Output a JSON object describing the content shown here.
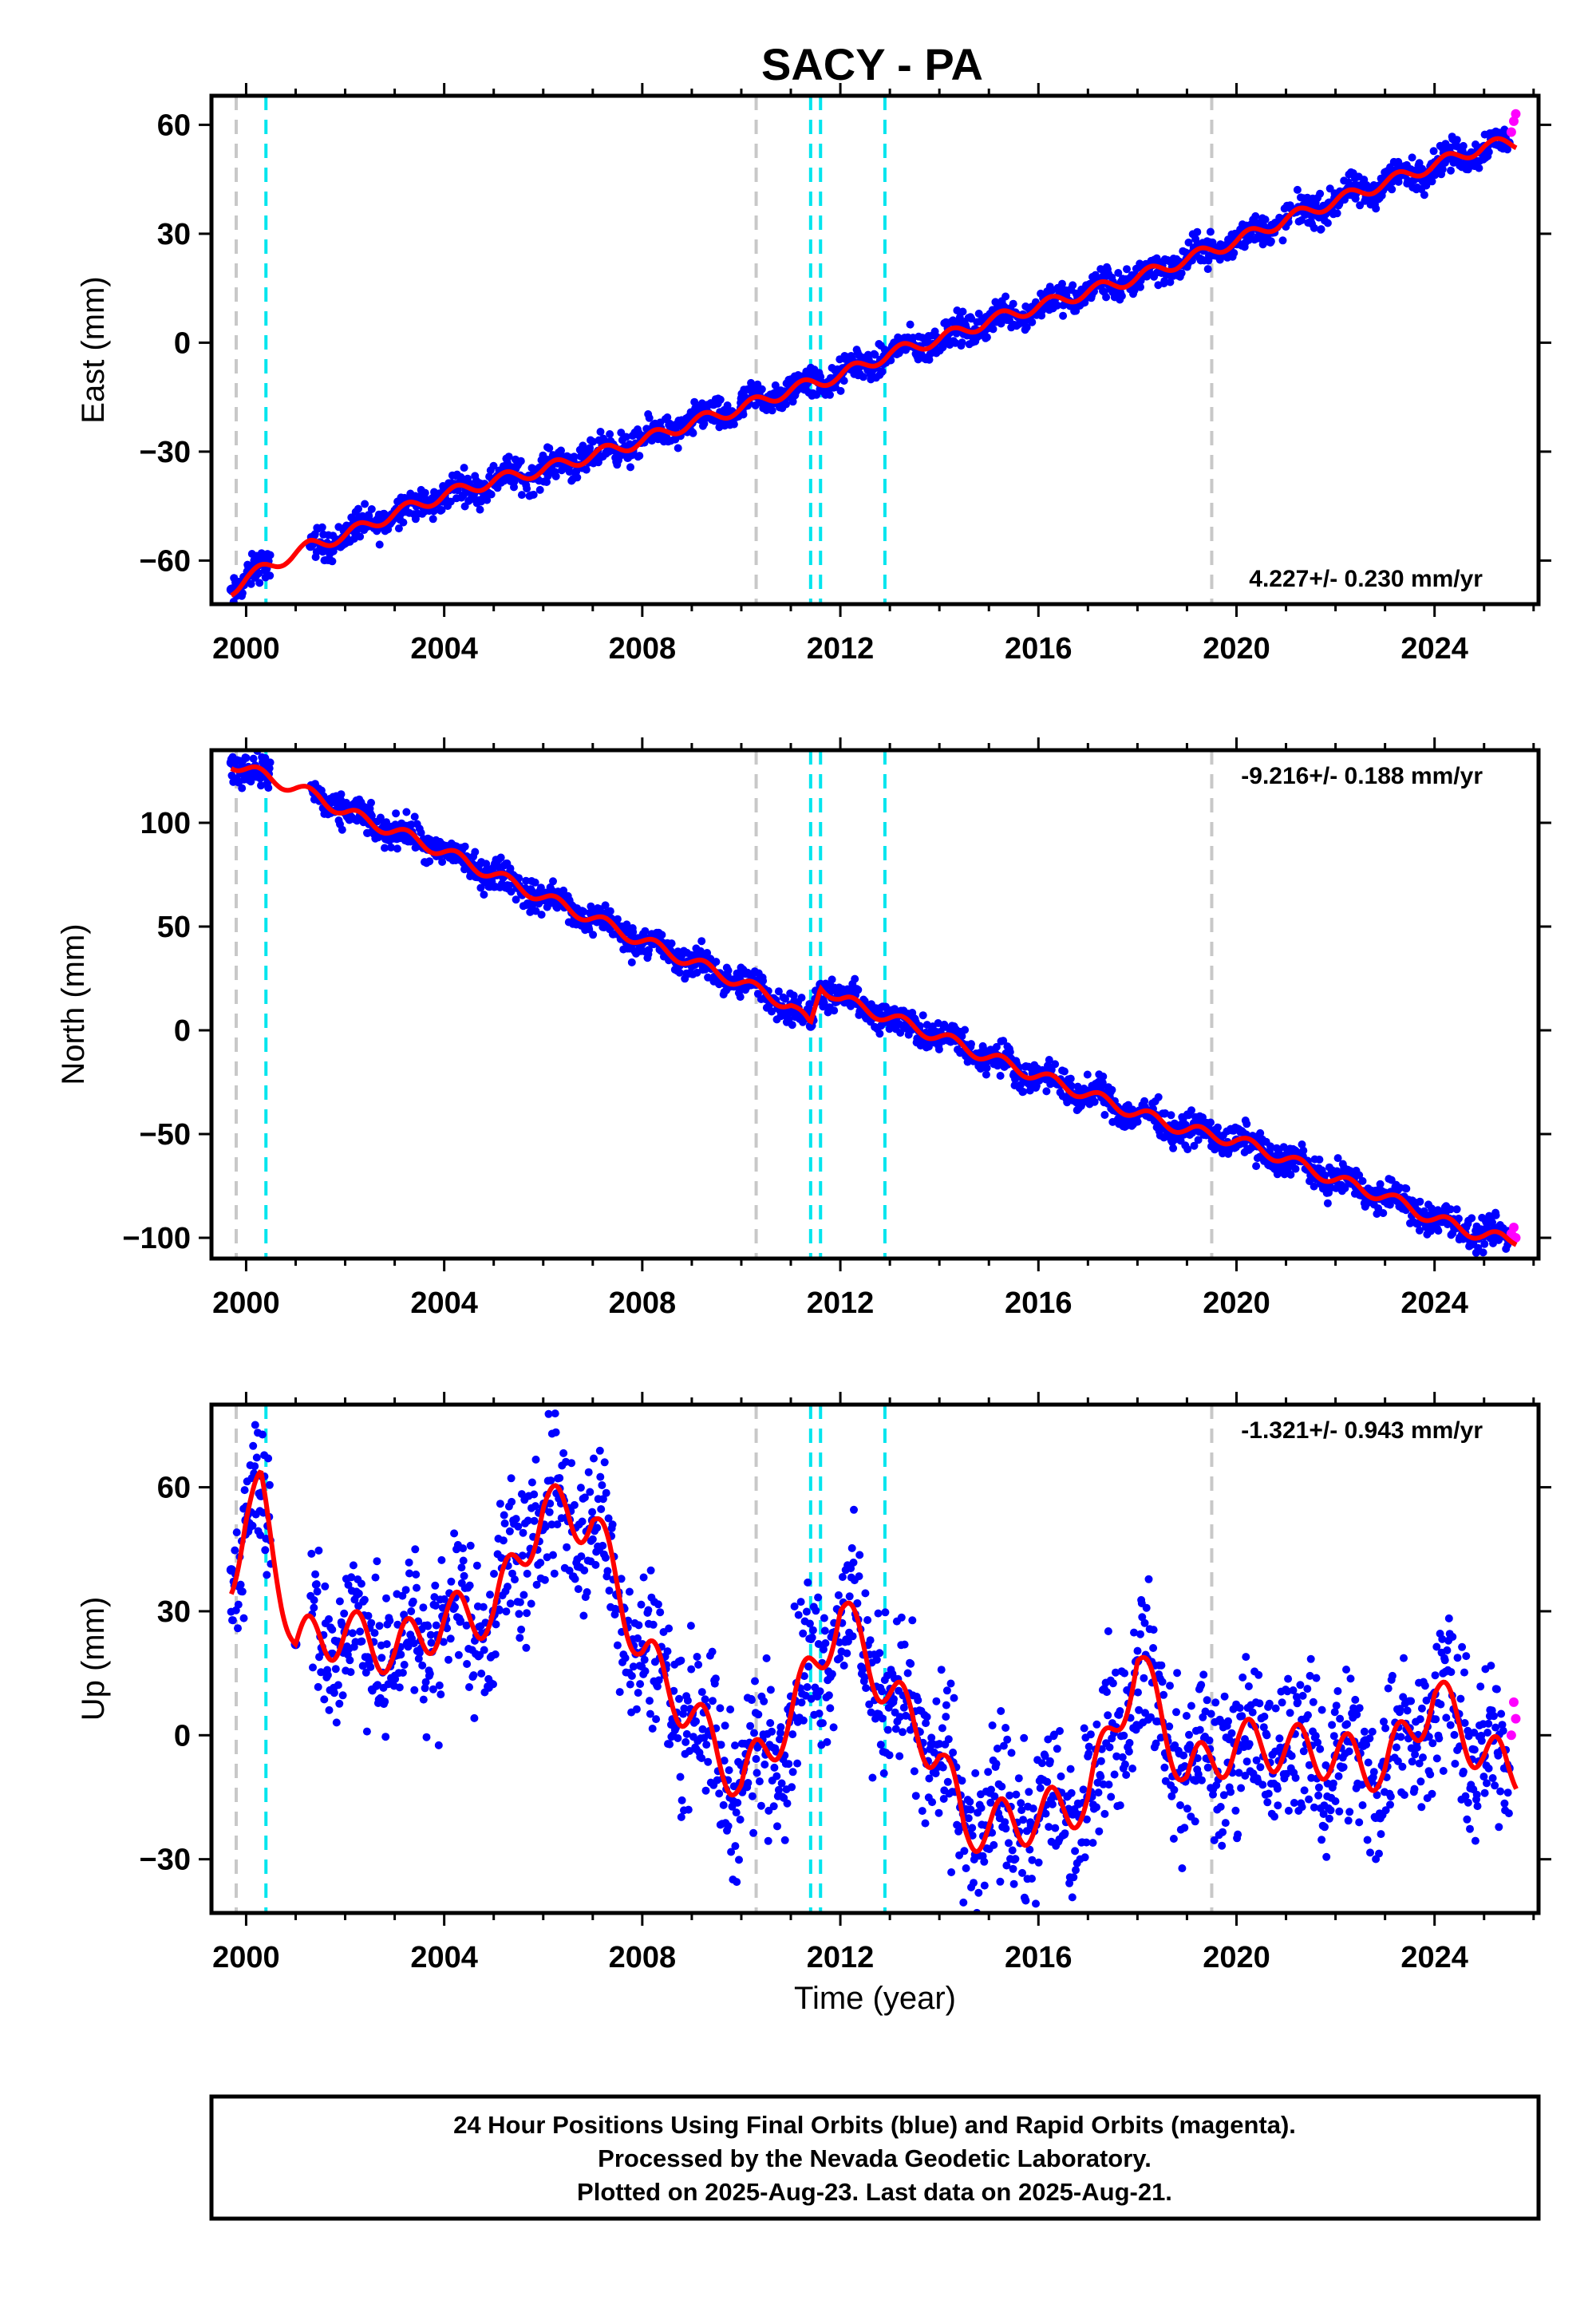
{
  "title": "SACY - PA",
  "colors": {
    "final_points": "#0000ff",
    "rapid_points": "#ff00ff",
    "model": "#ff0000",
    "grey_line": "#c8c8c8",
    "cyan_line": "#00e5ee"
  },
  "chart_data": [
    {
      "type": "scatter",
      "ylabel": "East (mm)",
      "xlabel": "",
      "xlim": [
        1999.3,
        2026.1
      ],
      "ylim": [
        -72,
        68
      ],
      "x_ticks": [
        2000,
        2004,
        2008,
        2012,
        2016,
        2020,
        2024
      ],
      "y_ticks": [
        60,
        30,
        0,
        -30,
        -60
      ],
      "y_tick_labels": [
        "60",
        "30",
        "0",
        "−30",
        "−60"
      ],
      "rate_text": "4.227+/- 0.230 mm/yr",
      "rate_position": "bottom-right",
      "grey_lines": [
        1999.8,
        2010.3,
        2019.5
      ],
      "cyan_lines": [
        2000.4,
        2011.4,
        2011.6,
        2012.9
      ],
      "series": [
        {
          "kind": "final",
          "x": [
            1999.7,
            2000.0,
            2000.4,
            2001.3,
            2002.0,
            2003.0,
            2004.0,
            2005.0,
            2006.0,
            2007.0,
            2008.0,
            2009.0,
            2010.0,
            2011.0,
            2012.0,
            2013.0,
            2014.0,
            2015.0,
            2016.0,
            2017.0,
            2018.0,
            2019.0,
            2020.0,
            2021.0,
            2022.0,
            2023.0,
            2024.0,
            2025.0,
            2025.5
          ],
          "y": [
            -68,
            -65,
            -62,
            -56,
            -53,
            -47,
            -42,
            -38,
            -35,
            -31,
            -27,
            -22,
            -18,
            -13,
            -9,
            -3,
            1,
            6,
            10,
            14,
            18,
            23,
            28,
            34,
            39,
            44,
            49,
            54,
            55
          ]
        },
        {
          "kind": "rapid",
          "x": [
            2025.55,
            2025.6,
            2025.64
          ],
          "y": [
            58,
            61,
            63
          ]
        }
      ]
    },
    {
      "type": "scatter",
      "ylabel": "North (mm)",
      "xlabel": "",
      "xlim": [
        1999.3,
        2026.1
      ],
      "ylim": [
        -110,
        135
      ],
      "x_ticks": [
        2000,
        2004,
        2008,
        2012,
        2016,
        2020,
        2024
      ],
      "y_ticks": [
        100,
        50,
        0,
        -50,
        -100
      ],
      "y_tick_labels": [
        "100",
        "50",
        "0",
        "−50",
        "−100"
      ],
      "rate_text": "-9.216+/- 0.188 mm/yr",
      "rate_position": "top-right",
      "grey_lines": [
        1999.8,
        2010.3,
        2019.5
      ],
      "cyan_lines": [
        2000.4,
        2011.4,
        2011.6,
        2012.9
      ],
      "series": [
        {
          "kind": "final",
          "x": [
            1999.7,
            2000.0,
            2001.5,
            2002.0,
            2003.0,
            2004.0,
            2005.0,
            2006.0,
            2007.0,
            2008.0,
            2009.0,
            2010.0,
            2011.0,
            2011.4,
            2011.6,
            2012.0,
            2013.0,
            2014.0,
            2015.0,
            2016.0,
            2017.0,
            2018.0,
            2019.0,
            2020.0,
            2021.0,
            2022.0,
            2023.0,
            2024.0,
            2025.0,
            2025.5
          ],
          "y": [
            129,
            126,
            112,
            105,
            96,
            86,
            75,
            64,
            54,
            43,
            33,
            23,
            12,
            2,
            22,
            15,
            6,
            -3,
            -13,
            -22,
            -31,
            -40,
            -48,
            -53,
            -62,
            -72,
            -80,
            -91,
            -99,
            -101
          ]
        },
        {
          "kind": "rapid",
          "x": [
            2025.55,
            2025.6,
            2025.64
          ],
          "y": [
            -98,
            -95,
            -100
          ]
        }
      ]
    },
    {
      "type": "scatter",
      "ylabel": "Up (mm)",
      "xlabel": "Time (year)",
      "xlim": [
        1999.3,
        2026.1
      ],
      "ylim": [
        -43,
        80
      ],
      "x_ticks": [
        2000,
        2004,
        2008,
        2012,
        2016,
        2020,
        2024
      ],
      "y_ticks": [
        60,
        30,
        0,
        -30
      ],
      "y_tick_labels": [
        "60",
        "30",
        "0",
        "−30"
      ],
      "rate_text": "-1.321+/- 0.943 mm/yr",
      "rate_position": "top-right",
      "grey_lines": [
        1999.8,
        2010.3,
        2019.5
      ],
      "cyan_lines": [
        2000.4,
        2011.4,
        2011.6,
        2012.9
      ],
      "series": [
        {
          "kind": "final",
          "x": [
            1999.7,
            2000.0,
            2000.3,
            2001.0,
            2002.0,
            2003.0,
            2004.0,
            2005.0,
            2006.0,
            2007.0,
            2008.0,
            2009.0,
            2010.0,
            2011.0,
            2012.0,
            2013.0,
            2014.0,
            2014.5,
            2015.0,
            2016.0,
            2017.0,
            2018.0,
            2019.0,
            2020.0,
            2021.0,
            2022.0,
            2023.0,
            2024.0,
            2025.0,
            2025.5
          ],
          "y": [
            40,
            52,
            58,
            22,
            25,
            20,
            28,
            30,
            55,
            52,
            20,
            5,
            -12,
            5,
            30,
            10,
            -5,
            -22,
            -22,
            -20,
            -15,
            18,
            -10,
            -2,
            -3,
            -5,
            -8,
            10,
            -5,
            -8
          ]
        },
        {
          "kind": "rapid",
          "x": [
            2025.55,
            2025.6,
            2025.64
          ],
          "y": [
            0,
            8,
            4
          ]
        }
      ]
    }
  ],
  "footer": {
    "line1": "24 Hour Positions Using Final Orbits (blue) and Rapid Orbits (magenta).",
    "line2": "Processed by the Nevada Geodetic Laboratory.",
    "line3": "Plotted on 2025-Aug-23. Last data on 2025-Aug-21."
  }
}
